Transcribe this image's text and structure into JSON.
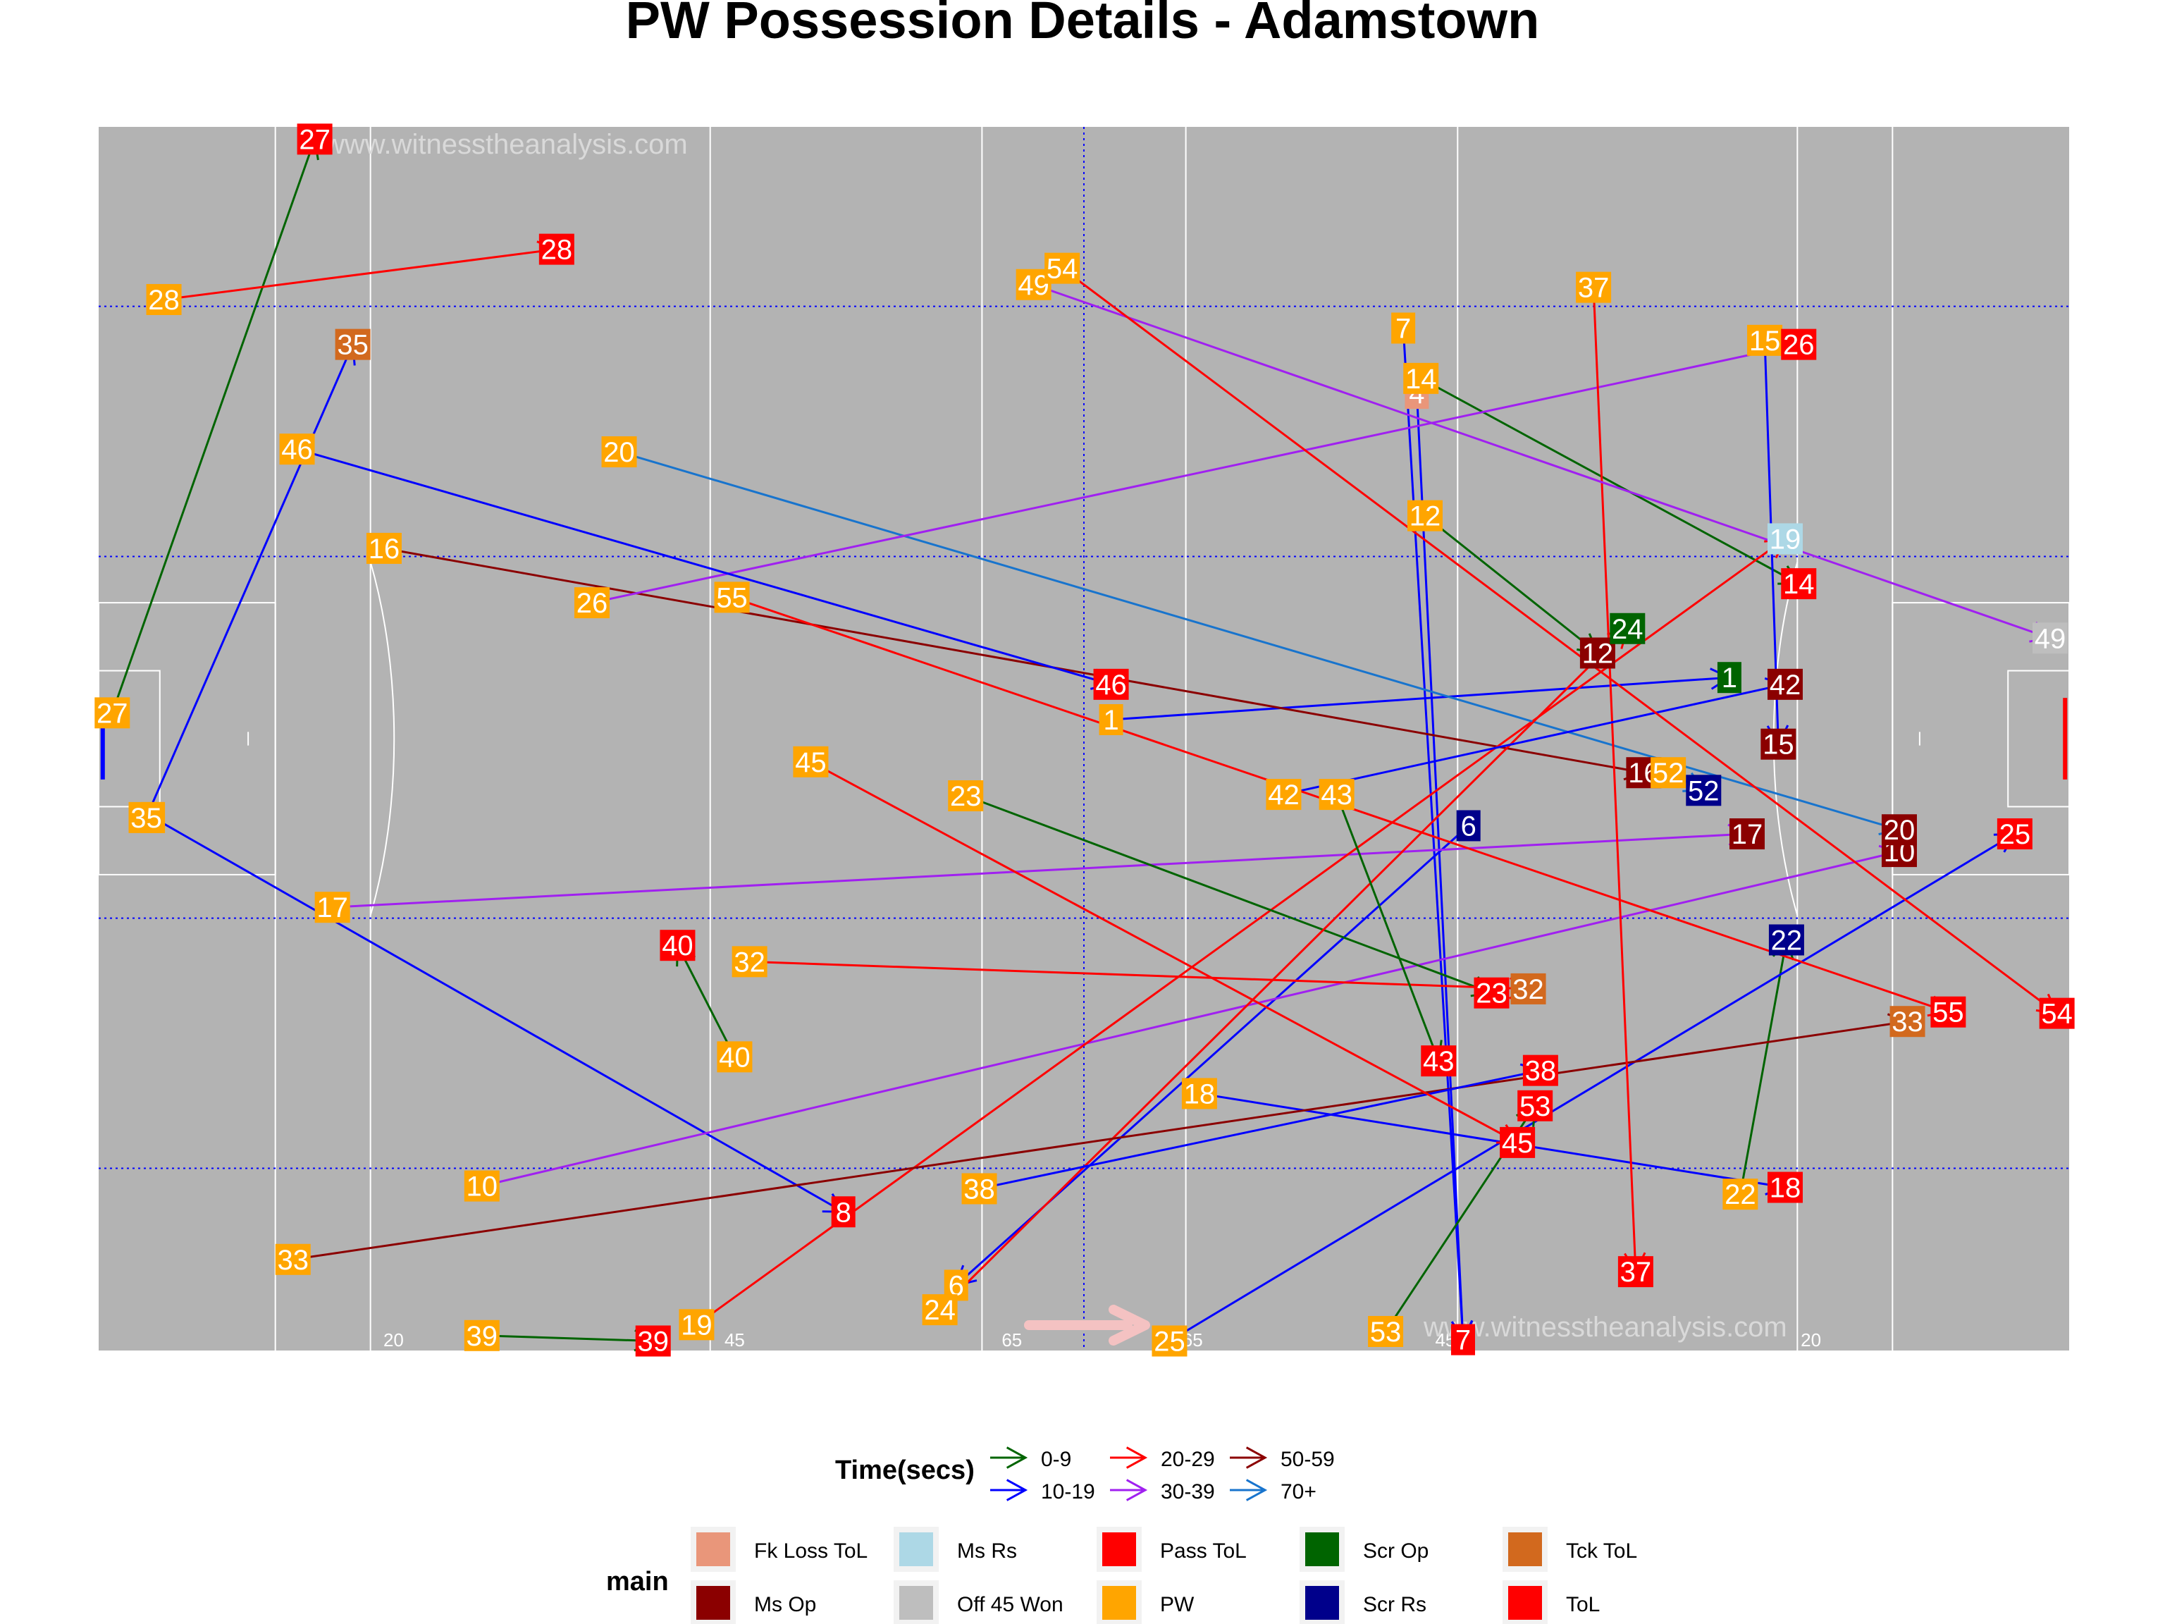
{
  "title": "PW Possession Details - Adamstown",
  "watermark": "www.witnesstheanalysis.com",
  "colors": {
    "panel": "#B3B3B3",
    "pitch_lines": "#FFFFFF",
    "guide_lines": "#0000FF",
    "time": {
      "0-9": "#006400",
      "10-19": "#0000FF",
      "20-29": "#FF0000",
      "30-39": "#A020F0",
      "50-59": "#8B0000",
      "70+": "#1874CD"
    },
    "main": {
      "Fk Loss ToL": "#E9967A",
      "Ms Rs": "#ADD8E6",
      "Pass ToL": "#FF0000",
      "Scr Op": "#006400",
      "Tck ToL": "#D2691E",
      "Ms Op": "#8B0000",
      "Off 45 Won": "#BEBEBE",
      "PW": "#FFA500",
      "Scr Rs": "#00008B",
      "ToL": "#FF0000"
    }
  },
  "chart_data": {
    "type": "scatter",
    "description_axes": "pitch coordinates; x = length 0-145, y = width 0-90",
    "xlim": [
      0,
      145
    ],
    "ylim": [
      0,
      90
    ],
    "grid": false,
    "pitch_markings": [
      {
        "value": 20,
        "label": "20"
      },
      {
        "value": 45,
        "label": "45"
      },
      {
        "value": 65,
        "label": "65"
      },
      {
        "value": 65,
        "label": "65"
      },
      {
        "value": 45,
        "label": "45"
      },
      {
        "value": 20,
        "label": "20"
      }
    ],
    "pitch_marking_x": [
      21.7,
      46.8,
      67.2,
      80.5,
      99.1,
      126
    ],
    "guide_x": [
      72.5
    ],
    "guide_y": [
      13.4,
      31.8,
      58.4,
      76.8
    ],
    "legend_time": {
      "title": "Time(secs)",
      "entries": [
        "0-9",
        "10-19",
        "20-29",
        "30-39",
        "50-59",
        "70+"
      ]
    },
    "legend_main": {
      "title": "main",
      "entries": [
        "Fk Loss ToL",
        "Ms Rs",
        "Pass ToL",
        "Scr Op",
        "Tck ToL",
        "Ms Op",
        "Off 45 Won",
        "PW",
        "Scr Rs",
        "ToL"
      ]
    },
    "series": [
      {
        "id": "1",
        "start": {
          "x": 74.5,
          "y": 46.4,
          "main": "PW"
        },
        "end": {
          "x": 120,
          "y": 49.5,
          "main": "Scr Op"
        },
        "time": "10-19"
      },
      {
        "id": "4",
        "start": {
          "x": 97.0,
          "y": 70.4,
          "main": "Fk Loss ToL"
        },
        "end": {
          "x": 100.4,
          "y": 0.8,
          "main": "ToL"
        },
        "time": "10-19"
      },
      {
        "id": "6",
        "start": {
          "x": 100.8,
          "y": 38.6,
          "main": "Scr Rs"
        },
        "end": {
          "x": 63.1,
          "y": 4.8,
          "main": "PW"
        },
        "time": "10-19"
      },
      {
        "id": "7",
        "start": {
          "x": 96.0,
          "y": 75.2,
          "main": "PW"
        },
        "end": {
          "x": 100.4,
          "y": 0.8,
          "main": "ToL"
        },
        "time": "10-19"
      },
      {
        "id": "8",
        "start": {
          "x": 4.0,
          "y": 39.2,
          "main": "PW"
        },
        "end": {
          "x": 54.8,
          "y": 10.2,
          "main": "ToL"
        },
        "time": "10-19"
      },
      {
        "id": "10",
        "start": {
          "x": 28.2,
          "y": 12.1,
          "main": "PW"
        },
        "end": {
          "x": 132.5,
          "y": 36.7,
          "main": "Ms Op"
        },
        "time": "30-39"
      },
      {
        "id": "12",
        "start": {
          "x": 97.6,
          "y": 61.4,
          "main": "PW"
        },
        "end": {
          "x": 110.3,
          "y": 51.3,
          "main": "Ms Op"
        },
        "time": "0-9"
      },
      {
        "id": "14",
        "start": {
          "x": 97.3,
          "y": 71.5,
          "main": "PW"
        },
        "end": {
          "x": 125.1,
          "y": 56.4,
          "main": "ToL"
        },
        "time": "0-9"
      },
      {
        "id": "15",
        "start": {
          "x": 122.6,
          "y": 74.3,
          "main": "PW"
        },
        "end": {
          "x": 123.6,
          "y": 44.6,
          "main": "Ms Op"
        },
        "time": "10-19"
      },
      {
        "id": "16",
        "start": {
          "x": 21.0,
          "y": 59.0,
          "main": "PW"
        },
        "end": {
          "x": 113.7,
          "y": 42.5,
          "main": "Ms Op"
        },
        "time": "50-59"
      },
      {
        "id": "17",
        "start": {
          "x": 17.2,
          "y": 32.6,
          "main": "PW"
        },
        "end": {
          "x": 121.3,
          "y": 38.0,
          "main": "Ms Op"
        },
        "time": "30-39"
      },
      {
        "id": "18",
        "start": {
          "x": 81.0,
          "y": 18.9,
          "main": "PW"
        },
        "end": {
          "x": 124.1,
          "y": 12.0,
          "main": "ToL"
        },
        "time": "10-19"
      },
      {
        "id": "19",
        "start": {
          "x": 44.0,
          "y": 1.9,
          "main": "PW"
        },
        "end": {
          "x": 124.1,
          "y": 59.7,
          "main": "Ms Rs"
        },
        "time": "20-29"
      },
      {
        "id": "20",
        "start": {
          "x": 38.3,
          "y": 66.1,
          "main": "PW"
        },
        "end": {
          "x": 132.5,
          "y": 38.3,
          "main": "Ms Op"
        },
        "time": "70+"
      },
      {
        "id": "22",
        "start": {
          "x": 120.8,
          "y": 11.5,
          "main": "PW"
        },
        "end": {
          "x": 124.2,
          "y": 30.2,
          "main": "Scr Rs"
        },
        "time": "0-9"
      },
      {
        "id": "23",
        "start": {
          "x": 63.8,
          "y": 40.8,
          "main": "PW"
        },
        "end": {
          "x": 102.5,
          "y": 26.3,
          "main": "ToL"
        },
        "time": "0-9"
      },
      {
        "id": "24",
        "start": {
          "x": 61.9,
          "y": 3.0,
          "main": "PW"
        },
        "end": {
          "x": 112.5,
          "y": 53.1,
          "main": "Scr Op"
        },
        "time": "20-29"
      },
      {
        "id": "25",
        "start": {
          "x": 78.8,
          "y": 0.7,
          "main": "PW"
        },
        "end": {
          "x": 141,
          "y": 38.0,
          "main": "ToL"
        },
        "time": "10-19"
      },
      {
        "id": "26",
        "start": {
          "x": 36.3,
          "y": 55.0,
          "main": "PW"
        },
        "end": {
          "x": 125.1,
          "y": 74.0,
          "main": "ToL"
        },
        "time": "30-39"
      },
      {
        "id": "27",
        "start": {
          "x": 1.0,
          "y": 46.9,
          "main": "PW"
        },
        "end": {
          "x": 15.9,
          "y": 89.1,
          "main": "ToL"
        },
        "time": "0-9"
      },
      {
        "id": "28",
        "start": {
          "x": 4.8,
          "y": 77.3,
          "main": "PW"
        },
        "end": {
          "x": 33.7,
          "y": 81.0,
          "main": "ToL"
        },
        "time": "20-29"
      },
      {
        "id": "32",
        "start": {
          "x": 47.9,
          "y": 28.6,
          "main": "PW"
        },
        "end": {
          "x": 105.2,
          "y": 26.6,
          "main": "Tck ToL"
        },
        "time": "20-29"
      },
      {
        "id": "33",
        "start": {
          "x": 14.3,
          "y": 6.7,
          "main": "PW"
        },
        "end": {
          "x": 133.1,
          "y": 24.2,
          "main": "Tck ToL"
        },
        "time": "50-59"
      },
      {
        "id": "35",
        "start": {
          "x": 3.5,
          "y": 39.2,
          "main": "PW"
        },
        "end": {
          "x": 18.7,
          "y": 74.0,
          "main": "Tck ToL"
        },
        "time": "10-19"
      },
      {
        "id": "37",
        "start": {
          "x": 110.0,
          "y": 78.2,
          "main": "PW"
        },
        "end": {
          "x": 113.1,
          "y": 5.8,
          "main": "ToL"
        },
        "time": "20-29"
      },
      {
        "id": "38",
        "start": {
          "x": 64.8,
          "y": 11.9,
          "main": "PW"
        },
        "end": {
          "x": 106.1,
          "y": 20.6,
          "main": "ToL"
        },
        "time": "10-19"
      },
      {
        "id": "39",
        "start": {
          "x": 28.2,
          "y": 1.1,
          "main": "PW"
        },
        "end": {
          "x": 40.8,
          "y": 0.7,
          "main": "ToL"
        },
        "time": "0-9"
      },
      {
        "id": "40",
        "start": {
          "x": 46.8,
          "y": 21.6,
          "main": "PW"
        },
        "end": {
          "x": 42.6,
          "y": 29.8,
          "main": "ToL"
        },
        "time": "0-9"
      },
      {
        "id": "42",
        "start": {
          "x": 87.2,
          "y": 40.9,
          "main": "PW"
        },
        "end": {
          "x": 124.1,
          "y": 49.0,
          "main": "Ms Op"
        },
        "time": "10-19"
      },
      {
        "id": "43",
        "start": {
          "x": 91.1,
          "y": 40.9,
          "main": "PW"
        },
        "end": {
          "x": 98.6,
          "y": 21.3,
          "main": "ToL"
        },
        "time": "0-9"
      },
      {
        "id": "45",
        "start": {
          "x": 52.4,
          "y": 43.3,
          "main": "PW"
        },
        "end": {
          "x": 104.4,
          "y": 15.3,
          "main": "ToL"
        },
        "time": "20-29"
      },
      {
        "id": "46",
        "start": {
          "x": 14.6,
          "y": 66.3,
          "main": "PW"
        },
        "end": {
          "x": 74.5,
          "y": 49.0,
          "main": "ToL"
        },
        "time": "10-19"
      },
      {
        "id": "49",
        "start": {
          "x": 68.8,
          "y": 78.4,
          "main": "PW"
        },
        "end": {
          "x": 143.6,
          "y": 52.4,
          "main": "Off 45 Won"
        },
        "time": "30-39"
      },
      {
        "id": "52",
        "start": {
          "x": 115.5,
          "y": 42.5,
          "main": "PW"
        },
        "end": {
          "x": 118.1,
          "y": 41.2,
          "main": "Scr Rs"
        },
        "time": "70+"
      },
      {
        "id": "53",
        "start": {
          "x": 94.7,
          "y": 1.4,
          "main": "PW"
        },
        "end": {
          "x": 105.7,
          "y": 18.0,
          "main": "ToL"
        },
        "time": "0-9"
      },
      {
        "id": "54",
        "start": {
          "x": 70.9,
          "y": 79.6,
          "main": "PW"
        },
        "end": {
          "x": 144.1,
          "y": 24.8,
          "main": "ToL"
        },
        "time": "20-29"
      },
      {
        "id": "55",
        "start": {
          "x": 46.6,
          "y": 55.4,
          "main": "PW"
        },
        "end": {
          "x": 136.1,
          "y": 24.9,
          "main": "ToL"
        },
        "time": "20-29"
      }
    ]
  }
}
